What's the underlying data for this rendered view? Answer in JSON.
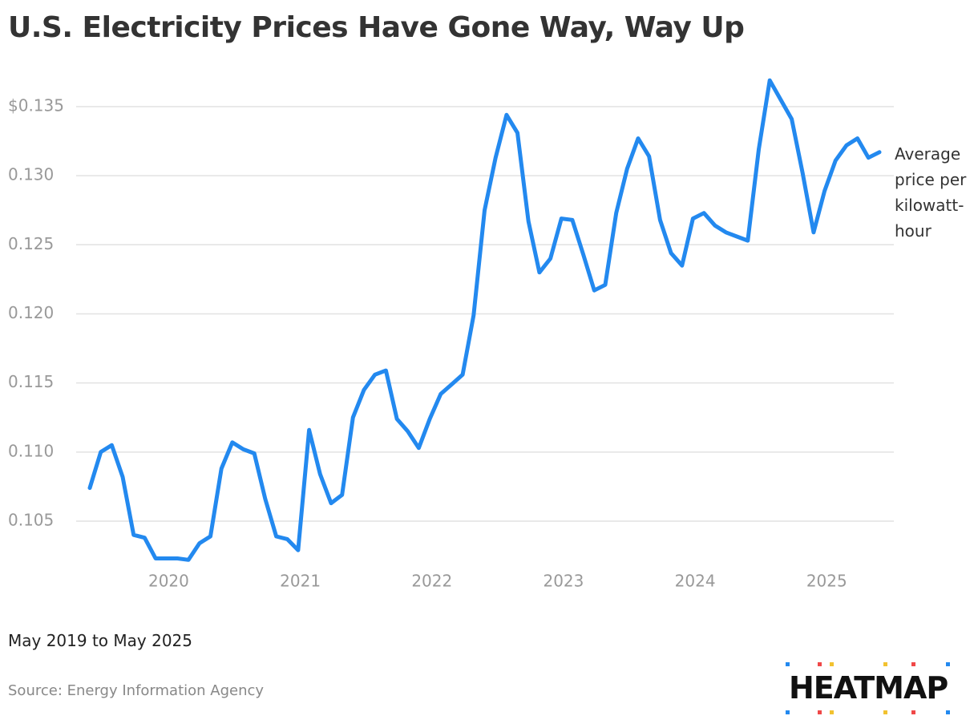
{
  "chart_data": {
    "type": "line",
    "title": "U.S. Electricity Prices Have Gone Way, Way Up",
    "subtitle": "May 2019 to May 2025",
    "source": "Source: Energy Information Agency",
    "logo": "HEATMAP",
    "x": [
      "2019-05",
      "2019-06",
      "2019-07",
      "2019-08",
      "2019-09",
      "2019-10",
      "2019-11",
      "2019-12",
      "2020-01",
      "2020-02",
      "2020-03",
      "2020-04",
      "2020-05",
      "2020-06",
      "2020-07",
      "2020-08",
      "2020-09",
      "2020-10",
      "2020-11",
      "2020-12",
      "2021-01",
      "2021-02",
      "2021-03",
      "2021-04",
      "2021-05",
      "2021-06",
      "2021-07",
      "2021-08",
      "2021-09",
      "2021-10",
      "2021-11",
      "2021-12",
      "2022-01",
      "2022-02",
      "2022-03",
      "2022-04",
      "2022-05",
      "2022-06",
      "2022-07",
      "2022-08",
      "2022-09",
      "2022-10",
      "2022-11",
      "2022-12",
      "2023-01",
      "2023-02",
      "2023-03",
      "2023-04",
      "2023-05",
      "2023-06",
      "2023-07",
      "2023-08",
      "2023-09",
      "2023-10",
      "2023-11",
      "2023-12",
      "2024-01",
      "2024-02",
      "2024-03",
      "2024-04",
      "2024-05",
      "2024-06",
      "2024-07",
      "2024-08",
      "2024-09",
      "2024-10",
      "2024-11",
      "2024-12",
      "2025-01",
      "2025-02",
      "2025-03",
      "2025-04",
      "2025-05"
    ],
    "series": [
      {
        "name": "Average price per kilowatt-hour",
        "color": "#2389ef",
        "values": [
          0.1074,
          0.11,
          0.1105,
          0.1082,
          0.104,
          0.1038,
          0.1023,
          0.1023,
          0.1023,
          0.1022,
          0.1034,
          0.1039,
          0.1088,
          0.1107,
          0.1102,
          0.1099,
          0.1066,
          0.1039,
          0.1037,
          0.1029,
          0.1116,
          0.1084,
          0.1063,
          0.1069,
          0.1125,
          0.1145,
          0.1156,
          0.1159,
          0.1124,
          0.1115,
          0.1103,
          0.1124,
          0.1142,
          0.1149,
          0.1156,
          0.1199,
          0.1275,
          0.1313,
          0.1344,
          0.1331,
          0.1267,
          0.123,
          0.124,
          0.1269,
          0.1268,
          0.1243,
          0.1217,
          0.1221,
          0.1273,
          0.1305,
          0.1327,
          0.1314,
          0.1268,
          0.1244,
          0.1235,
          0.1269,
          0.1273,
          0.1264,
          0.1259,
          0.1256,
          0.1253,
          0.1319,
          0.1369,
          0.1355,
          0.1341,
          0.1302,
          0.1259,
          0.1289,
          0.1311,
          0.1322,
          0.1327,
          0.1313,
          0.1317
        ]
      }
    ],
    "xticks": [
      2020,
      2021,
      2022,
      2023,
      2024,
      2025
    ],
    "ylim": [
      0.102,
      0.137
    ],
    "yticks": [
      0.105,
      {
        "value": 0.11,
        "label": "0.110"
      },
      0.115,
      {
        "value": 0.12,
        "label": "0.120"
      },
      0.125,
      {
        "value": 0.13,
        "label": "0.130"
      },
      {
        "value": 0.135,
        "label": "$0.135"
      }
    ],
    "grid": true
  }
}
